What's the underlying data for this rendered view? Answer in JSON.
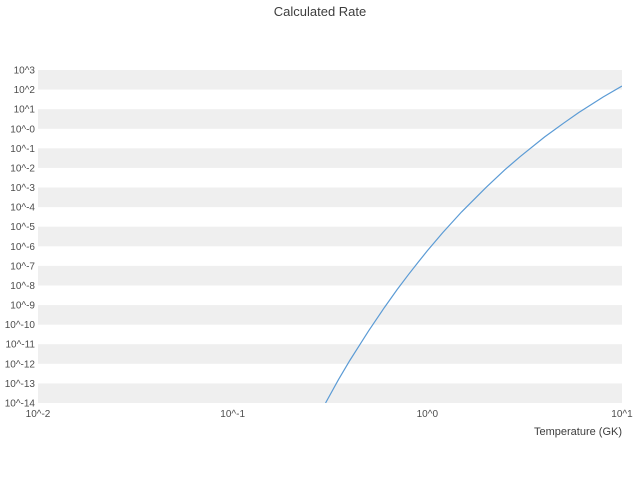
{
  "chart_data": {
    "type": "line",
    "title": "Calculated Rate",
    "xlabel": "Temperature (GK)",
    "ylabel": "",
    "x_scale": "log",
    "y_scale": "log",
    "xlim_log": [
      -2,
      1
    ],
    "ylim_log": [
      -14,
      3
    ],
    "grid": "horizontal-bands",
    "legend": "none",
    "band_color": "#efefef",
    "line_color": "#5b9bd5",
    "x_tick_labels": [
      "10^-2",
      "10^-1",
      "10^0",
      "10^1"
    ],
    "x_tick_log": [
      -2,
      -1,
      0,
      1
    ],
    "y_tick_labels": [
      "10^3",
      "10^2",
      "10^1",
      "10^-0",
      "10^-1",
      "10^-2",
      "10^-3",
      "10^-4",
      "10^-5",
      "10^-6",
      "10^-7",
      "10^-8",
      "10^-9",
      "10^-10",
      "10^-11",
      "10^-12",
      "10^-13",
      "10^-14"
    ],
    "y_tick_log": [
      3,
      2,
      1,
      0,
      -1,
      -2,
      -3,
      -4,
      -5,
      -6,
      -7,
      -8,
      -9,
      -10,
      -11,
      -12,
      -13,
      -14
    ],
    "series": [
      {
        "name": "calculated-rate",
        "x": [
          0.3,
          0.35,
          0.4,
          0.45,
          0.5,
          0.6,
          0.7,
          0.8,
          0.9,
          1.0,
          1.2,
          1.5,
          2.0,
          2.5,
          3.0,
          4.0,
          5.0,
          6.0,
          8.0,
          10.0
        ],
        "y": [
          1e-14,
          1.6e-13,
          1.5e-12,
          9.5e-12,
          4.9e-11,
          7.2e-10,
          6.2e-09,
          3.6e-08,
          1.6e-07,
          5.9e-07,
          5e-06,
          5.7e-05,
          0.001,
          0.008,
          0.038,
          0.38,
          1.9,
          6.8,
          42,
          151
        ]
      }
    ]
  }
}
